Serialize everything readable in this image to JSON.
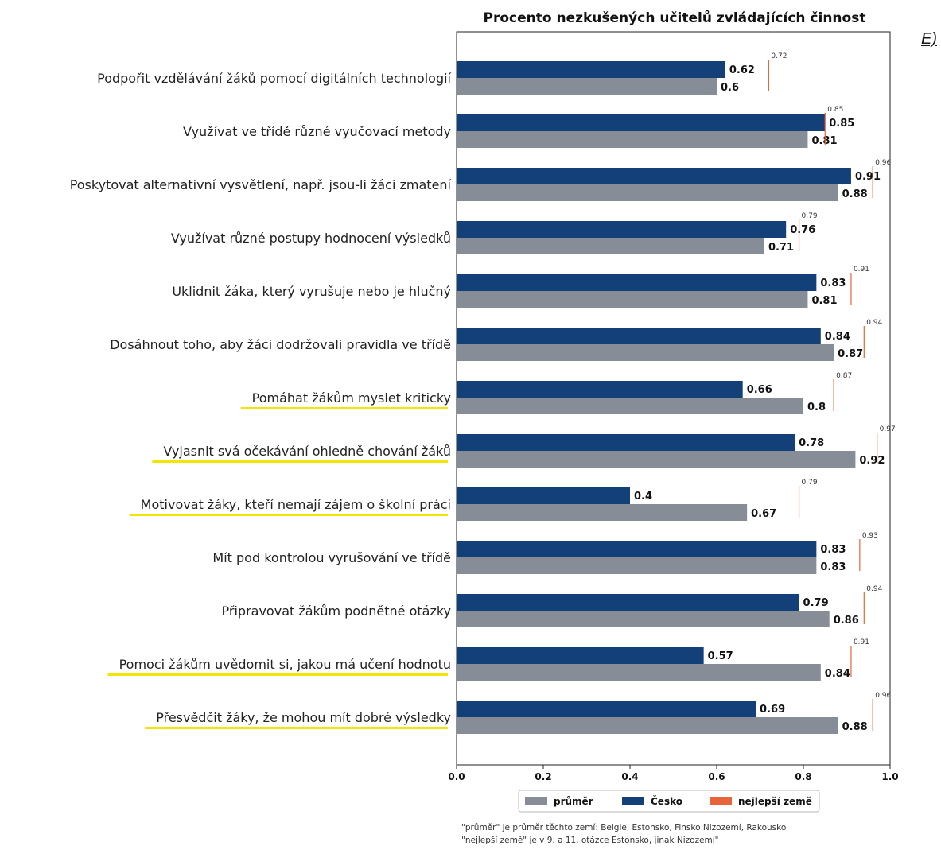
{
  "corner_label": "E)",
  "footnotes": [
    "\"průměr\" je průměr těchto zemí: Belgie, Estonsko, Finsko Nizozemí, Rakousko",
    "\"nejlepší země\" je v 9. a 11. otázce Estonsko, jinak Nizozemí\""
  ],
  "colors": {
    "prumer": "#878d96",
    "cesko": "#14407a",
    "nejlepsi": "#e8643c",
    "highlight": "#f2e600"
  },
  "chart_data": {
    "type": "bar",
    "orientation": "horizontal",
    "title": "Procento nezkušených učitelů zvládajících činnost",
    "xlim": [
      0,
      1.0
    ],
    "xticks": [
      "0.0",
      "0.2",
      "0.4",
      "0.6",
      "0.8",
      "1.0"
    ],
    "grid": false,
    "legend_position": "bottom",
    "categories": [
      "Podpořit vzdělávání žáků pomocí digitálních technologií",
      "Využívat ve třídě různé vyučovací metody",
      "Poskytovat alternativní vysvětlení, např. jsou-li žáci zmatení",
      "Využívat různé postupy hodnocení výsledků",
      "Uklidnit žáka, který vyrušuje nebo je hlučný",
      "Dosáhnout toho, aby žáci dodržovali pravidla ve třídě",
      "Pomáhat žákům myslet kriticky",
      "Vyjasnit svá očekávání ohledně chování žáků",
      "Motivovat žáky, kteří nemají zájem o školní práci",
      "Mít pod kontrolou vyrušování ve třídě",
      "Připravovat žákům podnětné otázky",
      "Pomoci žákům uvědomit si, jakou má učení hodnotu",
      "Přesvědčit žáky, že mohou mít dobré výsledky"
    ],
    "highlighted": [
      false,
      false,
      false,
      false,
      false,
      false,
      true,
      true,
      true,
      false,
      false,
      true,
      true
    ],
    "series": [
      {
        "name": "Česko",
        "values": [
          0.62,
          0.85,
          0.91,
          0.76,
          0.83,
          0.84,
          0.66,
          0.78,
          0.4,
          0.83,
          0.79,
          0.57,
          0.69
        ]
      },
      {
        "name": "průměr",
        "values": [
          0.6,
          0.81,
          0.88,
          0.71,
          0.81,
          0.87,
          0.8,
          0.92,
          0.67,
          0.83,
          0.86,
          0.84,
          0.88
        ]
      },
      {
        "name": "nejlepší země",
        "values": [
          0.72,
          0.85,
          0.96,
          0.79,
          0.91,
          0.94,
          0.87,
          0.97,
          0.79,
          0.93,
          0.94,
          0.91,
          0.96
        ]
      }
    ],
    "legend": [
      "průměr",
      "Česko",
      "nejlepší země"
    ]
  }
}
